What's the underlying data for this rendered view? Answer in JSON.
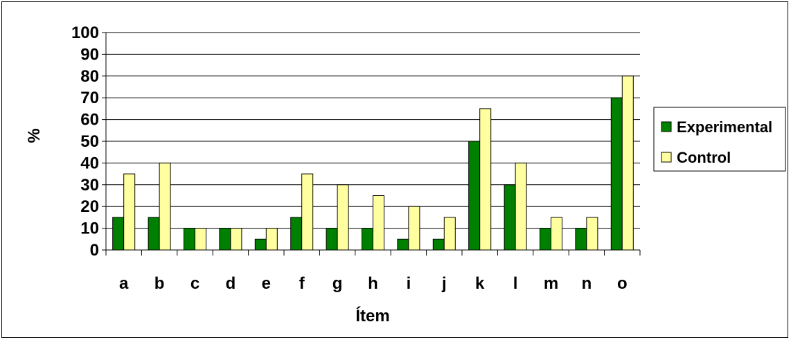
{
  "chart_data": {
    "type": "bar",
    "categories": [
      "a",
      "b",
      "c",
      "d",
      "e",
      "f",
      "g",
      "h",
      "i",
      "j",
      "k",
      "l",
      "m",
      "n",
      "o"
    ],
    "series": [
      {
        "name": "Experimental",
        "color": "#008000",
        "values": [
          15,
          15,
          10,
          10,
          5,
          15,
          10,
          10,
          5,
          5,
          50,
          30,
          10,
          10,
          70
        ]
      },
      {
        "name": "Control",
        "color": "#ffffa0",
        "values": [
          35,
          40,
          10,
          10,
          10,
          35,
          30,
          25,
          20,
          15,
          65,
          40,
          15,
          15,
          80
        ]
      }
    ],
    "xlabel": "Ítem",
    "ylabel": "%",
    "ylim": [
      0,
      100
    ],
    "yticks": [
      "0",
      "10",
      "20",
      "30",
      "40",
      "50",
      "60",
      "70",
      "80",
      "90",
      "100"
    ],
    "grid": true,
    "legend_position": "right"
  }
}
